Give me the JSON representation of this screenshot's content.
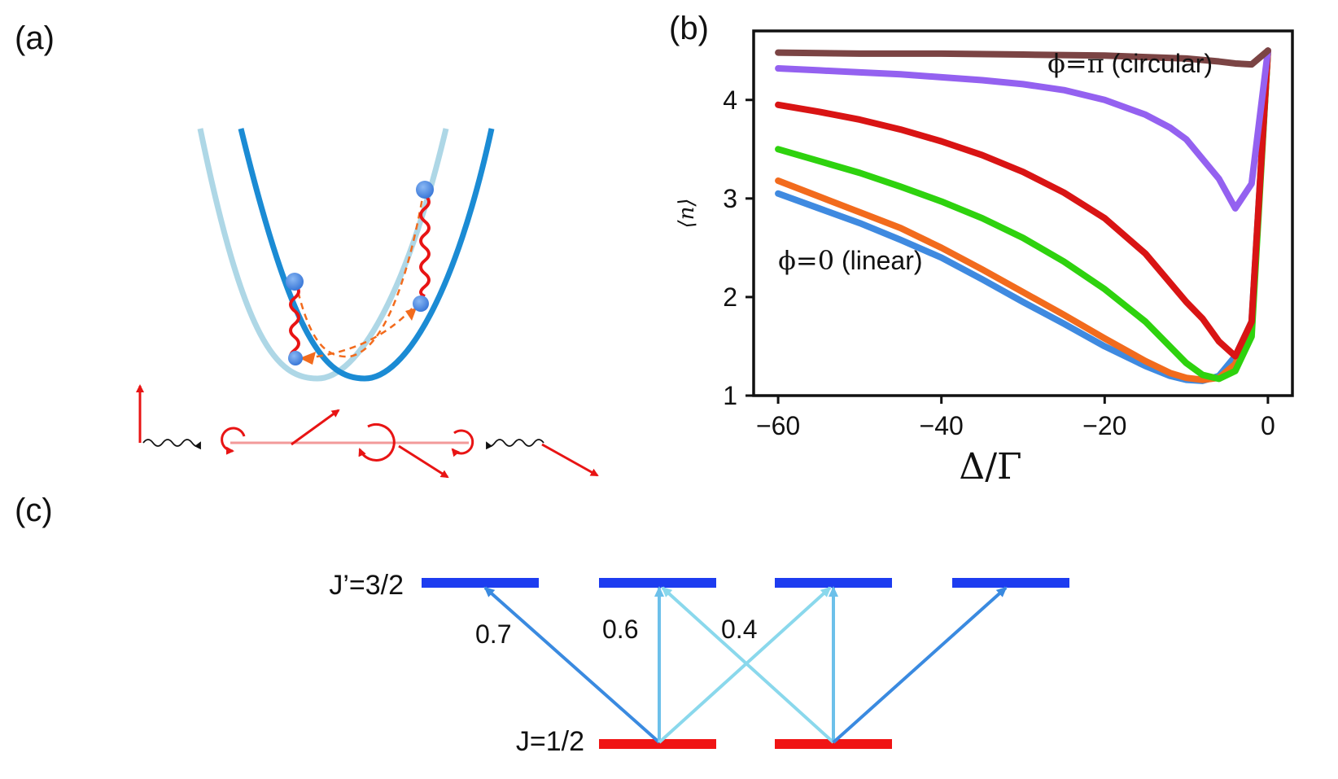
{
  "panels": {
    "a": {
      "label": "(a)"
    },
    "b": {
      "label": "(b)"
    },
    "c": {
      "label": "(c)"
    }
  },
  "chart_data": {
    "type": "line",
    "title": "",
    "xlabel": "Δ/Γ",
    "ylabel": "⟨n⟩",
    "xlim": [
      -63,
      3
    ],
    "ylim": [
      1,
      4.7
    ],
    "xticks": [
      -60,
      -40,
      -20,
      0
    ],
    "xtick_labels": [
      "−60",
      "−40",
      "−20",
      "0"
    ],
    "yticks": [
      1,
      2,
      3,
      4
    ],
    "ytick_labels": [
      "1",
      "2",
      "3",
      "4"
    ],
    "annotations": [
      {
        "text": "ϕ=π (circular)",
        "greek": "ϕ=π",
        "rest": " (circular)"
      },
      {
        "text": "ϕ=0 (linear)",
        "greek": "ϕ=0",
        "rest": " (linear)"
      }
    ],
    "series": [
      {
        "name": "blue",
        "color": "#3f8ae0",
        "x": [
          -60,
          -55,
          -50,
          -45,
          -40,
          -35,
          -30,
          -25,
          -20,
          -15,
          -12,
          -10,
          -8,
          -6,
          -4,
          -2,
          0
        ],
        "y": [
          3.05,
          2.9,
          2.75,
          2.58,
          2.4,
          2.18,
          1.95,
          1.73,
          1.5,
          1.3,
          1.2,
          1.16,
          1.15,
          1.2,
          1.4,
          1.75,
          4.5
        ]
      },
      {
        "name": "orange",
        "color": "#f26b1d",
        "x": [
          -60,
          -55,
          -50,
          -45,
          -40,
          -35,
          -30,
          -25,
          -20,
          -15,
          -12,
          -10,
          -8,
          -6,
          -4,
          -2,
          0
        ],
        "y": [
          3.18,
          3.02,
          2.86,
          2.7,
          2.5,
          2.28,
          2.05,
          1.82,
          1.58,
          1.35,
          1.23,
          1.18,
          1.16,
          1.18,
          1.32,
          1.7,
          4.5
        ]
      },
      {
        "name": "green",
        "color": "#2ed20e",
        "x": [
          -60,
          -55,
          -50,
          -45,
          -40,
          -35,
          -30,
          -25,
          -20,
          -15,
          -10,
          -8,
          -6,
          -4,
          -2,
          0
        ],
        "y": [
          3.5,
          3.38,
          3.26,
          3.12,
          2.97,
          2.8,
          2.6,
          2.36,
          2.08,
          1.75,
          1.33,
          1.21,
          1.17,
          1.25,
          1.6,
          4.5
        ]
      },
      {
        "name": "red",
        "color": "#d91414",
        "x": [
          -60,
          -55,
          -50,
          -45,
          -40,
          -35,
          -30,
          -25,
          -20,
          -15,
          -10,
          -8,
          -6,
          -4,
          -2,
          0
        ],
        "y": [
          3.95,
          3.88,
          3.8,
          3.7,
          3.58,
          3.44,
          3.27,
          3.06,
          2.8,
          2.44,
          1.95,
          1.78,
          1.55,
          1.4,
          1.75,
          4.5
        ]
      },
      {
        "name": "purple",
        "color": "#9461f0",
        "x": [
          -60,
          -55,
          -50,
          -45,
          -40,
          -35,
          -30,
          -25,
          -20,
          -15,
          -12,
          -10,
          -8,
          -6,
          -4,
          -2,
          0
        ],
        "y": [
          4.32,
          4.3,
          4.28,
          4.26,
          4.23,
          4.2,
          4.16,
          4.1,
          4.0,
          3.85,
          3.72,
          3.6,
          3.4,
          3.2,
          2.9,
          3.15,
          4.5
        ]
      },
      {
        "name": "brown",
        "color": "#7b4444",
        "x": [
          -60,
          -50,
          -40,
          -30,
          -20,
          -10,
          -6,
          -4,
          -2,
          0
        ],
        "y": [
          4.48,
          4.47,
          4.47,
          4.46,
          4.45,
          4.42,
          4.39,
          4.37,
          4.36,
          4.5
        ]
      }
    ]
  },
  "level_diagram": {
    "upper_label": "J’=3/2",
    "lower_label": "J=1/2",
    "upper_color": "#1d3cf0",
    "lower_color": "#f01414",
    "coefficients": [
      "0.7",
      "0.6",
      "0.4"
    ],
    "arrow_colors": {
      "strong": "#3a8ae0",
      "pi": "#6cc0ea",
      "weak": "#8ad8ec"
    }
  },
  "schematic": {
    "trap_light_color": "#aed7e6",
    "trap_dark_color": "#1b8bd4",
    "photon_color": "#e81414",
    "atom_color": "#4a8ae6"
  }
}
